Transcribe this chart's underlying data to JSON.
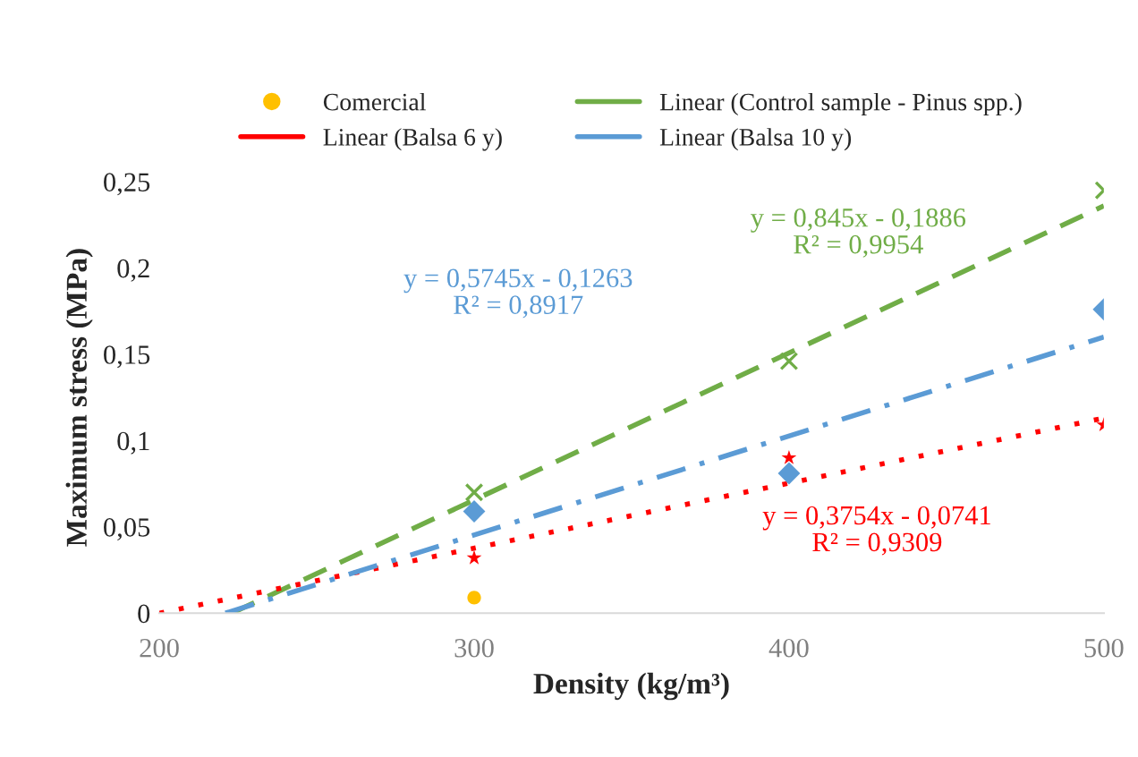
{
  "chart_data": {
    "type": "scatter",
    "xlabel": "Density (kg/m³)",
    "ylabel": "Maximum stress (MPa)",
    "xlim": [
      200,
      500
    ],
    "xticks": [
      200,
      300,
      400,
      500
    ],
    "ylim": [
      0,
      0.25
    ],
    "yticks": [
      0,
      {
        "value": 0.05,
        "label": "0,05"
      },
      {
        "value": 0.1,
        "label": "0,1"
      },
      {
        "value": 0.15,
        "label": "0,15"
      },
      {
        "value": 0.2,
        "label": "0,2"
      },
      {
        "value": 0.25,
        "label": "0,25"
      }
    ],
    "grid": false,
    "legend": "top",
    "series": [
      {
        "name": "Comercial",
        "type": "scatter",
        "marker": "circle",
        "color": "#ffc000",
        "x": [
          300
        ],
        "values": [
          0.009
        ]
      },
      {
        "type": "scatter",
        "marker": "cross",
        "color": "#70ad47",
        "x": [
          300,
          400,
          500
        ],
        "values": [
          0.07,
          0.146,
          0.245
        ]
      },
      {
        "type": "scatter",
        "marker": "diamond",
        "color": "#5b9bd5",
        "x": [
          300,
          400,
          500
        ],
        "values": [
          0.059,
          0.081,
          0.176
        ]
      },
      {
        "type": "scatter",
        "marker": "star",
        "color": "#ff0000",
        "x": [
          300,
          400,
          500
        ],
        "values": [
          0.032,
          0.09,
          0.109
        ]
      },
      {
        "name": "Linear (Control sample - Pinus spp.)",
        "type": "line",
        "line_style": "dashed",
        "color": "#70ad47",
        "x": [
          223,
          500
        ],
        "values": [
          0,
          0.236
        ]
      },
      {
        "name": "Linear (Balsa 6 y)",
        "type": "line",
        "line_style": "dotted",
        "color": "#ff0000",
        "x": [
          200,
          500
        ],
        "values": [
          0,
          0.113
        ]
      },
      {
        "name": "Linear (Balsa 10 y)",
        "type": "line",
        "line_style": "dashdot",
        "color": "#5b9bd5",
        "x": [
          221,
          500
        ],
        "values": [
          0,
          0.16
        ]
      }
    ],
    "annotations": [
      "y = 0,845x - 0,1886\nR² = 0,9954",
      "y = 0,3754x - 0,0741\nR² = 0,9309",
      "y = 0,5745x - 0,1263\nR² = 0,8917"
    ]
  }
}
